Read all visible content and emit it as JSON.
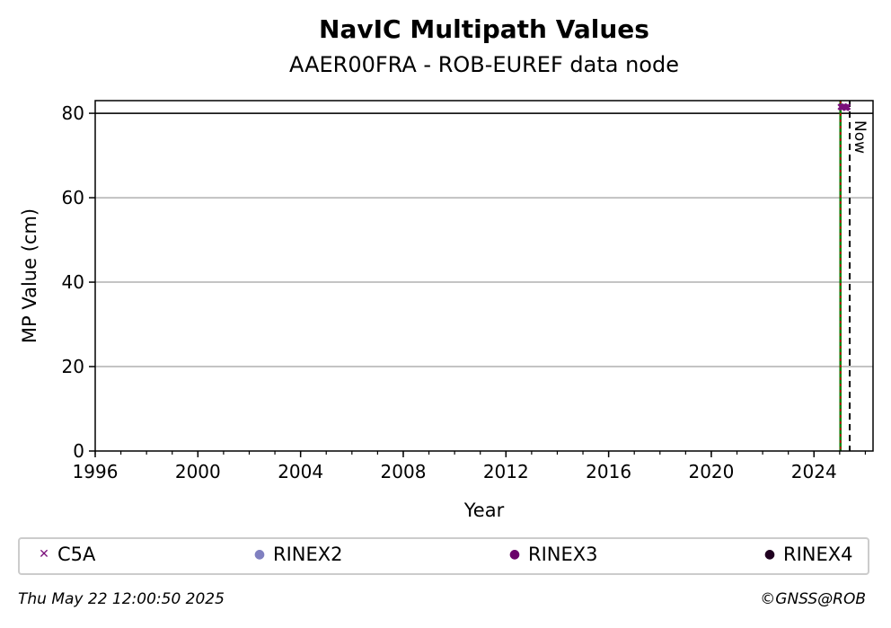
{
  "chart_data": {
    "type": "scatter",
    "title": "NavIC Multipath Values",
    "subtitle": "AAER00FRA - ROB-EUREF data node",
    "xlabel": "Year",
    "ylabel": "MP Value (cm)",
    "xlim": [
      1996,
      2026.3
    ],
    "ylim": [
      0,
      83
    ],
    "xticks": [
      1996,
      2000,
      2004,
      2008,
      2012,
      2016,
      2020,
      2024
    ],
    "yticks": [
      0,
      20,
      40,
      60,
      80
    ],
    "grid": "horizontal",
    "reference_line_y": 80,
    "now_line": {
      "x": 2025.39,
      "label": "Now"
    },
    "start_line": {
      "x": 2025.03
    },
    "series": [
      {
        "name": "C5A",
        "marker": "x",
        "color": "#7a0f7a",
        "x": [
          2025.05,
          2025.1,
          2025.15,
          2025.2,
          2025.25,
          2025.3
        ],
        "y": [
          81.5,
          81.4,
          81.6,
          81.5,
          81.3,
          81.5
        ]
      },
      {
        "name": "RINEX2",
        "marker": "dot",
        "color": "#8080c0",
        "x": [],
        "y": []
      },
      {
        "name": "RINEX3",
        "marker": "dot",
        "color": "#6a006a",
        "x": [],
        "y": []
      },
      {
        "name": "RINEX4",
        "marker": "dot",
        "color": "#200020",
        "x": [],
        "y": []
      }
    ],
    "legend_position": "bottom"
  },
  "footer": {
    "timestamp": "Thu May 22 12:00:50 2025",
    "credit": "©GNSS@ROB"
  }
}
